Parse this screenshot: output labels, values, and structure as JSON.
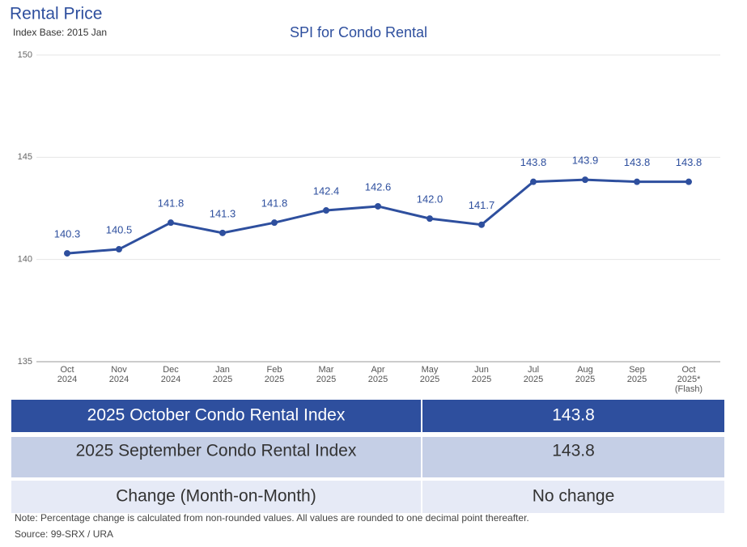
{
  "header": {
    "title": "Rental Price",
    "subtitle": "Index Base: 2015 Jan"
  },
  "chart_data": {
    "type": "line",
    "title": "SPI for Condo Rental",
    "categories": [
      "Oct 2024",
      "Nov 2024",
      "Dec 2024",
      "Jan 2025",
      "Feb 2025",
      "Mar 2025",
      "Apr 2025",
      "May 2025",
      "Jun 2025",
      "Jul 2025",
      "Aug 2025",
      "Sep 2025",
      "Oct 2025* (Flash)"
    ],
    "series": [
      {
        "name": "SPI for Condo Rental",
        "color": "#2e4f9e",
        "values": [
          140.3,
          140.5,
          141.8,
          141.3,
          141.8,
          142.4,
          142.6,
          142.0,
          141.7,
          143.8,
          143.9,
          143.8,
          143.8
        ],
        "value_labels": [
          "140.3",
          "140.5",
          "141.8",
          "141.3",
          "141.8",
          "142.4",
          "142.6",
          "142.0",
          "141.7",
          "143.8",
          "143.9",
          "143.8",
          "143.8"
        ]
      }
    ],
    "ylim": [
      135,
      150
    ],
    "yticks": [
      135,
      140,
      145,
      150
    ],
    "grid": true
  },
  "table": {
    "rows": [
      [
        "2025 October Condo Rental Index",
        "143.8"
      ],
      [
        "2025 September Condo Rental Index",
        "143.8"
      ],
      [
        "Change (Month-on-Month)",
        "No change"
      ]
    ]
  },
  "notes": {
    "note": "Note: Percentage change is calculated from non-rounded values.  All values are rounded to one decimal point thereafter.",
    "source": "Source: 99-SRX / URA"
  }
}
